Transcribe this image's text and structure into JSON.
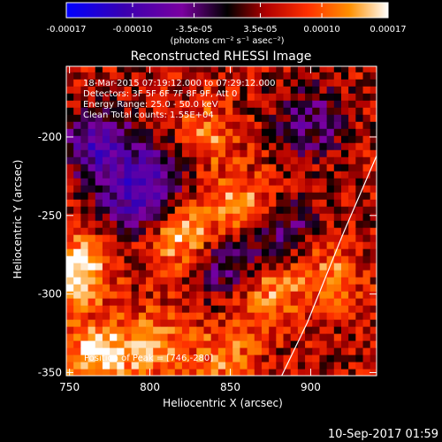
{
  "footer_date": "10-Sep-2017 01:59",
  "colorbar": {
    "ticks": [
      "-0.00017",
      "-0.00010",
      "-3.5e-05",
      "3.5e-05",
      "0.00010",
      "0.00017"
    ],
    "tick_values": [
      -0.00017,
      -0.0001,
      -3.5e-05,
      3.5e-05,
      0.0001,
      0.00017
    ],
    "range": [
      -0.00017,
      0.00017
    ],
    "units": "(photons cm⁻² s⁻¹ asec⁻²)",
    "colors": [
      "#0000ff",
      "#3a00b0",
      "#7a00a0",
      "#000000",
      "#b00000",
      "#ff3000",
      "#ff9000",
      "#ffffff"
    ]
  },
  "chart_data": {
    "type": "heatmap",
    "title": "Reconstructed RHESSI Image",
    "xlabel": "Heliocentric X (arcsec)",
    "ylabel": "Heliocentric Y (arcsec)",
    "xlim": [
      748,
      941
    ],
    "ylim": [
      -352,
      -155
    ],
    "x_ticks": [
      750,
      800,
      850,
      900
    ],
    "x_tick_labels": [
      "750",
      "800",
      "850",
      "900"
    ],
    "y_ticks": [
      -200,
      -250,
      -300,
      -350
    ],
    "y_tick_labels": [
      "-200",
      "-250",
      "-300",
      "-350"
    ],
    "annotations": [
      "18-Mar-2015 07:19:12.000 to 07:29:12.000",
      "Detectors: 3F 5F 6F 7F 8F 9F, Att 0",
      "Energy Range: 25.0 - 50.0 keV",
      "Clean     Total counts: 1.55E+04"
    ],
    "peak_label": "Position of Peak = [746,-280]",
    "peak_position": [
      746,
      -280
    ],
    "limb_points": [
      [
        941,
        -212
      ],
      [
        920,
        -262
      ],
      [
        898,
        -318
      ],
      [
        882,
        -352
      ]
    ],
    "bright_regions": [
      {
        "x": 752,
        "y": -285,
        "value": 0.00017
      },
      {
        "x": 768,
        "y": -340,
        "value": 0.00014
      },
      {
        "x": 820,
        "y": -265,
        "value": 0.00012
      },
      {
        "x": 858,
        "y": -245,
        "value": 0.00012
      },
      {
        "x": 832,
        "y": -200,
        "value": 0.0001
      },
      {
        "x": 872,
        "y": -298,
        "value": 0.00011
      },
      {
        "x": 912,
        "y": -288,
        "value": 9e-05
      },
      {
        "x": 800,
        "y": -330,
        "value": 0.0001
      },
      {
        "x": 845,
        "y": -340,
        "value": 9e-05
      }
    ],
    "dark_regions": [
      {
        "x": 768,
        "y": -205,
        "value": -0.00011
      },
      {
        "x": 790,
        "y": -240,
        "value": -0.0001
      },
      {
        "x": 848,
        "y": -282,
        "value": -8e-05
      },
      {
        "x": 880,
        "y": -258,
        "value": -7e-05
      },
      {
        "x": 900,
        "y": -190,
        "value": -6e-05
      },
      {
        "x": 808,
        "y": -218,
        "value": -7e-05
      }
    ]
  }
}
